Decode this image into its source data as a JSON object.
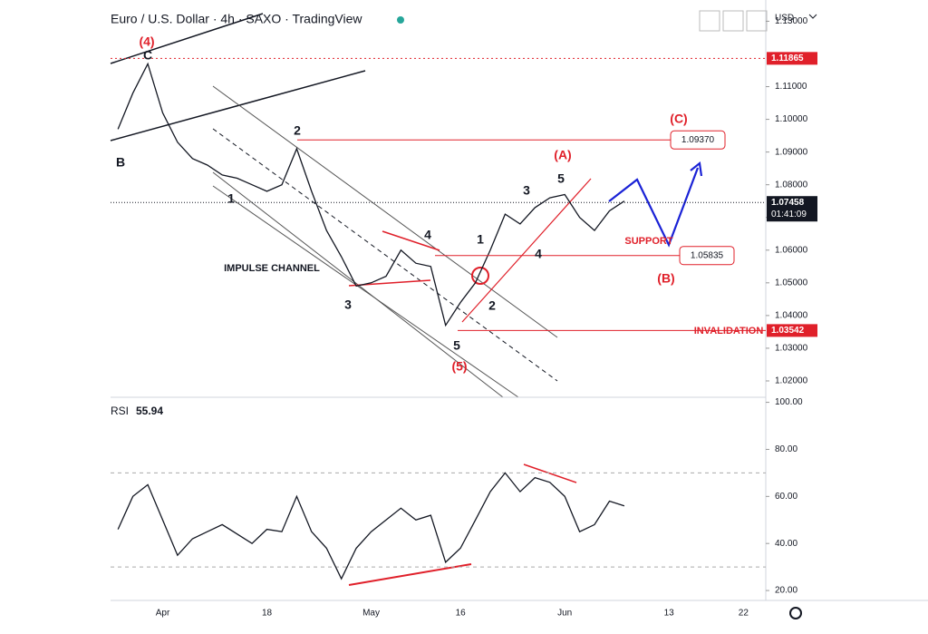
{
  "chart_data": [
    {
      "type": "line",
      "title": "Euro / U.S. Dollar · 4h · SAXO · TradingView",
      "y_axis_label": "USD",
      "categories": [
        null,
        null,
        null,
        "Apr",
        null,
        null,
        null,
        null,
        null,
        null,
        "18",
        null,
        null,
        null,
        null,
        null,
        null,
        "May",
        null,
        null,
        null,
        null,
        null,
        "16",
        null,
        null,
        null,
        null,
        null,
        null,
        "Jun",
        null,
        null,
        null,
        null,
        null,
        null,
        "13",
        null,
        null,
        null,
        null,
        "22",
        null
      ],
      "series": [
        {
          "name": "EURUSD",
          "color": "#131722",
          "values": [
            1.097,
            1.108,
            1.117,
            1.102,
            1.093,
            1.088,
            1.086,
            1.083,
            1.082,
            1.08,
            1.078,
            1.08,
            1.091,
            1.078,
            1.066,
            1.058,
            1.049,
            1.05,
            1.052,
            1.06,
            1.056,
            1.055,
            1.037,
            1.044,
            1.05,
            1.06,
            1.071,
            1.068,
            1.073,
            1.076,
            1.077,
            1.07,
            1.066,
            1.072,
            1.075,
            null,
            null,
            null,
            null,
            null,
            null,
            null,
            null,
            null
          ]
        }
      ],
      "ylim": [
        1.015,
        1.1365
      ],
      "yticks": [
        {
          "value": 1.02,
          "label": "1.02000"
        },
        {
          "value": 1.03,
          "label": "1.03000"
        },
        {
          "value": 1.04,
          "label": "1.04000"
        },
        {
          "value": 1.05,
          "label": "1.05000"
        },
        {
          "value": 1.06,
          "label": "1.06000"
        },
        {
          "value": 1.07,
          "label": "1.07000"
        },
        {
          "value": 1.08,
          "label": "1.08000"
        },
        {
          "value": 1.09,
          "label": "1.09000"
        },
        {
          "value": 1.1,
          "label": "1.10000"
        },
        {
          "value": 1.11,
          "label": "1.11000"
        },
        {
          "value": 1.13,
          "label": "1.13000"
        }
      ],
      "levels": [
        {
          "value": 1.11865,
          "label": "1.11865",
          "color": "#e0202a"
        },
        {
          "value": 1.0937,
          "label": "1.09370",
          "color": "#e0202a"
        },
        {
          "value": 1.07458,
          "label": "1.07458",
          "color": "#131722",
          "sublabel": "01:41:09"
        },
        {
          "value": 1.05835,
          "label": "1.05835",
          "color": "#e0202a"
        },
        {
          "value": 1.03542,
          "label": "1.03542",
          "color": "#e0202a"
        }
      ],
      "annotations": [
        {
          "text": "(4)",
          "color": "#e0202a"
        },
        {
          "text": "C",
          "color": "#131722"
        },
        {
          "text": "B",
          "color": "#131722"
        },
        {
          "text": "2",
          "color": "#131722"
        },
        {
          "text": "1",
          "color": "#131722"
        },
        {
          "text": "IMPULSE CHANNEL",
          "color": "#131722"
        },
        {
          "text": "3",
          "color": "#131722"
        },
        {
          "text": "4",
          "color": "#131722"
        },
        {
          "text": "1",
          "color": "#131722"
        },
        {
          "text": "2",
          "color": "#131722"
        },
        {
          "text": "3",
          "color": "#131722"
        },
        {
          "text": "5",
          "color": "#131722"
        },
        {
          "text": "4",
          "color": "#131722"
        },
        {
          "text": "5",
          "color": "#131722"
        },
        {
          "text": "(5)",
          "color": "#e0202a"
        },
        {
          "text": "(A)",
          "color": "#e0202a"
        },
        {
          "text": "(C)",
          "color": "#e0202a"
        },
        {
          "text": "(B)",
          "color": "#e0202a"
        },
        {
          "text": "SUPPORT",
          "color": "#e0202a"
        },
        {
          "text": "INVALIDATION",
          "color": "#e0202a"
        }
      ]
    },
    {
      "type": "line",
      "title": "RSI",
      "current_value_label": "55.94",
      "series": [
        {
          "name": "RSI",
          "color": "#131722",
          "values": [
            46,
            60,
            65,
            50,
            35,
            42,
            45,
            48,
            44,
            40,
            46,
            45,
            60,
            45,
            38,
            25,
            38,
            45,
            50,
            55,
            50,
            52,
            32,
            38,
            50,
            62,
            70,
            62,
            68,
            66,
            60,
            45,
            48,
            58,
            56,
            null,
            null,
            null,
            null,
            null,
            null,
            null,
            null,
            null
          ]
        }
      ],
      "ylim": [
        18,
        101
      ],
      "yticks": [
        {
          "value": 20,
          "label": "20.00"
        },
        {
          "value": 40,
          "label": "40.00"
        },
        {
          "value": 60,
          "label": "60.00"
        },
        {
          "value": 80,
          "label": "80.00"
        },
        {
          "value": 100,
          "label": "100.00"
        }
      ],
      "bands": [
        30,
        70
      ]
    }
  ]
}
